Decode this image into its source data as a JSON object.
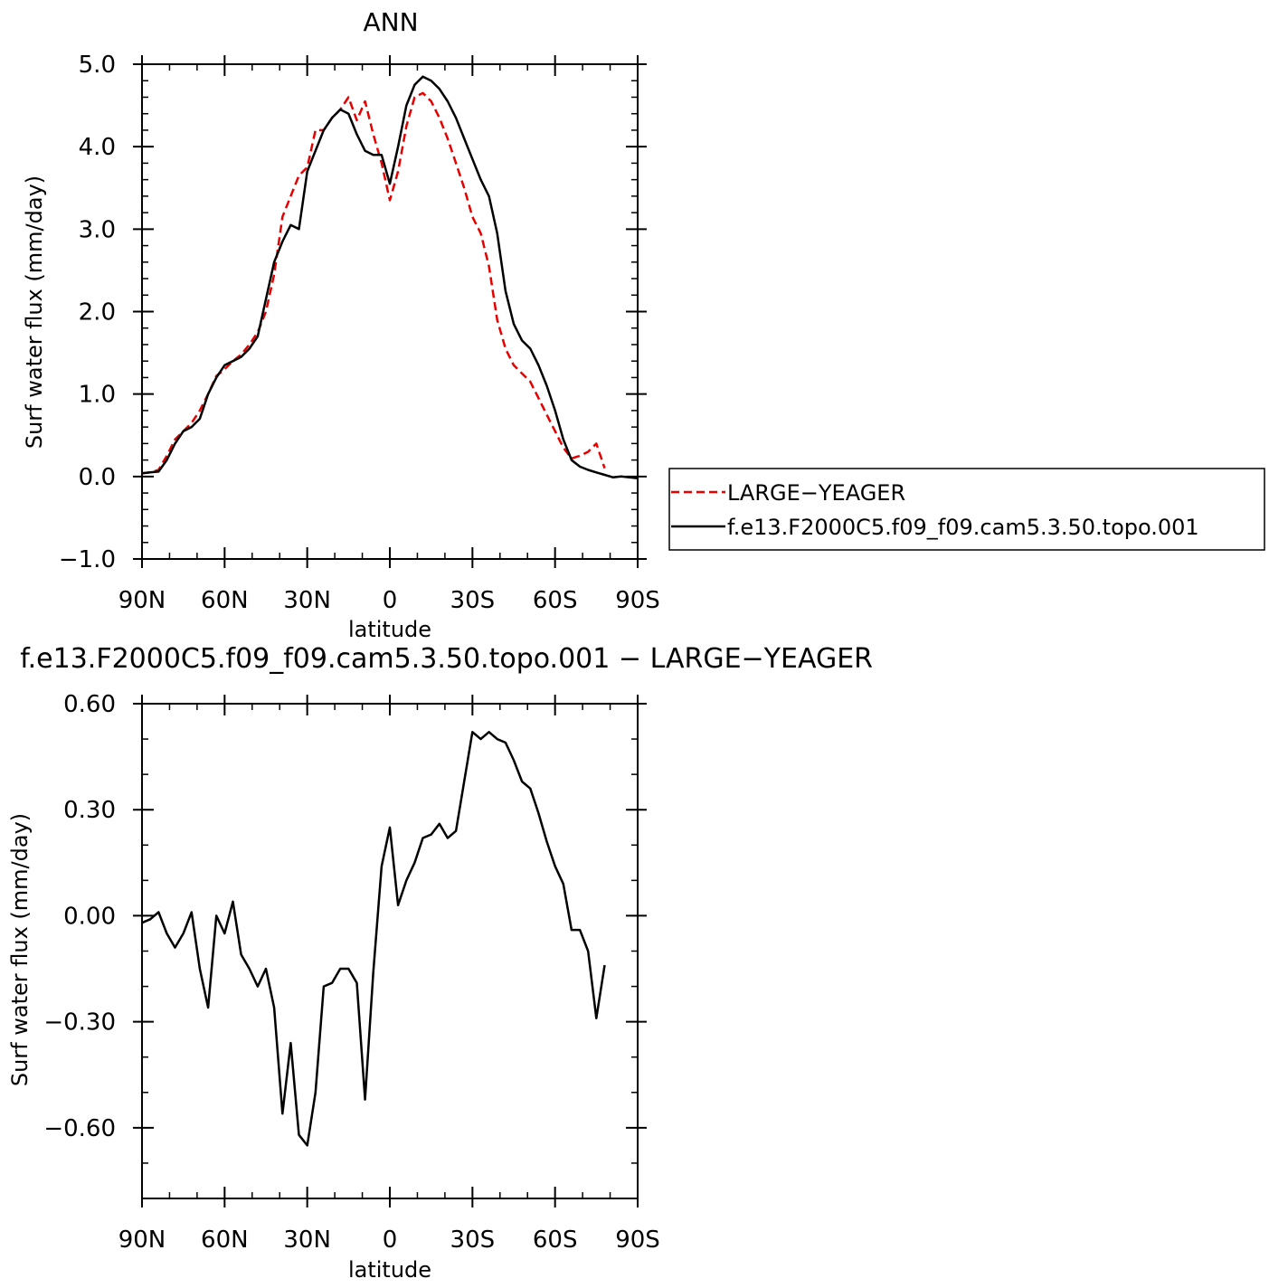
{
  "chart_data": [
    {
      "type": "line",
      "title": "ANN",
      "xlabel": "latitude",
      "ylabel": "Surf water flux (mm/day)",
      "ylim": [
        -1.0,
        5.0
      ],
      "xlim": [
        90,
        -90
      ],
      "y_tick_labels": [
        "5.0",
        "4.0",
        "3.0",
        "2.0",
        "1.0",
        "0.0",
        "−1.0"
      ],
      "x_tick_labels": [
        "90N",
        "60N",
        "30N",
        "0",
        "30S",
        "60S",
        "90S"
      ],
      "legend": {
        "placement": "right",
        "entries": [
          "LARGE−YEAGER",
          "f.e13.F2000C5.f09_f09.cam5.3.50.topo.001"
        ]
      },
      "series": [
        {
          "name": "LARGE−YEAGER",
          "color": "#e60000",
          "dashed": true,
          "x": [
            90,
            87,
            84,
            81,
            78,
            75,
            72,
            69,
            66,
            63,
            60,
            57,
            54,
            51,
            48,
            45,
            42,
            39,
            36,
            33,
            30,
            27,
            24,
            21,
            18,
            15,
            12,
            9,
            6,
            3,
            0,
            -3,
            -6,
            -9,
            -12,
            -15,
            -18,
            -21,
            -24,
            -27,
            -30,
            -33,
            -36,
            -39,
            -42,
            -45,
            -48,
            -51,
            -54,
            -57,
            -60,
            -63,
            -66,
            -69,
            -72,
            -75,
            -78
          ],
          "y": [
            0.04,
            0.05,
            0.08,
            0.25,
            0.45,
            0.55,
            0.65,
            0.8,
            1.0,
            1.22,
            1.3,
            1.4,
            1.48,
            1.6,
            1.75,
            2.0,
            2.45,
            3.15,
            3.4,
            3.65,
            3.75,
            4.2,
            4.2,
            4.35,
            4.45,
            4.6,
            4.32,
            4.55,
            4.15,
            3.8,
            3.35,
            3.7,
            4.25,
            4.6,
            4.65,
            4.55,
            4.35,
            4.1,
            3.8,
            3.5,
            3.15,
            2.95,
            2.55,
            1.9,
            1.55,
            1.35,
            1.25,
            1.15,
            0.95,
            0.75,
            0.55,
            0.35,
            0.22,
            0.25,
            0.3,
            0.4,
            0.1
          ]
        },
        {
          "name": "f.e13.F2000C5.f09_f09.cam5.3.50.topo.001",
          "color": "#000000",
          "dashed": false,
          "x": [
            90,
            87,
            84,
            81,
            78,
            75,
            72,
            69,
            66,
            63,
            60,
            57,
            54,
            51,
            48,
            45,
            42,
            39,
            36,
            33,
            30,
            27,
            24,
            21,
            18,
            15,
            12,
            9,
            6,
            3,
            0,
            -3,
            -6,
            -9,
            -12,
            -15,
            -18,
            -21,
            -24,
            -27,
            -30,
            -33,
            -36,
            -39,
            -42,
            -45,
            -48,
            -51,
            -54,
            -57,
            -60,
            -63,
            -66,
            -69,
            -72,
            -75,
            -78,
            -81,
            -84,
            -87,
            -90
          ],
          "y": [
            0.04,
            0.05,
            0.06,
            0.2,
            0.4,
            0.55,
            0.6,
            0.7,
            1.0,
            1.2,
            1.35,
            1.4,
            1.45,
            1.55,
            1.7,
            2.15,
            2.6,
            2.85,
            3.05,
            3.0,
            3.7,
            3.95,
            4.2,
            4.35,
            4.45,
            4.4,
            4.15,
            3.95,
            3.9,
            3.9,
            3.55,
            4.0,
            4.5,
            4.75,
            4.85,
            4.8,
            4.7,
            4.55,
            4.35,
            4.1,
            3.85,
            3.6,
            3.4,
            2.95,
            2.25,
            1.85,
            1.65,
            1.55,
            1.35,
            1.1,
            0.8,
            0.45,
            0.2,
            0.12,
            0.08,
            0.05,
            0.02,
            -0.01,
            0.0,
            -0.01,
            -0.02
          ]
        }
      ]
    },
    {
      "type": "line",
      "title": "f.e13.F2000C5.f09_f09.cam5.3.50.topo.001 − LARGE−YEAGER",
      "xlabel": "latitude",
      "ylabel": "Surf water flux (mm/day)",
      "ylim": [
        -0.8,
        0.6
      ],
      "xlim": [
        90,
        -90
      ],
      "y_tick_labels": [
        "0.60",
        "0.30",
        "0.00",
        "−0.30",
        "−0.60"
      ],
      "x_tick_labels": [
        "90N",
        "60N",
        "30N",
        "0",
        "30S",
        "60S",
        "90S"
      ],
      "series": [
        {
          "color": "#000000",
          "dashed": false,
          "x": [
            90,
            87,
            84,
            81,
            78,
            75,
            72,
            69,
            66,
            63,
            60,
            57,
            54,
            51,
            48,
            45,
            42,
            39,
            36,
            33,
            30,
            27,
            24,
            21,
            18,
            15,
            12,
            9,
            6,
            3,
            0,
            -3,
            -6,
            -9,
            -12,
            -15,
            -18,
            -21,
            -24,
            -27,
            -30,
            -33,
            -36,
            -39,
            -42,
            -45,
            -48,
            -51,
            -54,
            -57,
            -60,
            -63,
            -66,
            -69,
            -72,
            -75,
            -78
          ],
          "y": [
            -0.02,
            -0.01,
            0.01,
            -0.05,
            -0.09,
            -0.05,
            0.01,
            -0.15,
            -0.26,
            0.0,
            -0.05,
            0.04,
            -0.11,
            -0.15,
            -0.2,
            -0.15,
            -0.26,
            -0.56,
            -0.36,
            -0.62,
            -0.65,
            -0.5,
            -0.2,
            -0.19,
            -0.15,
            -0.15,
            -0.19,
            -0.52,
            -0.16,
            0.14,
            0.25,
            0.03,
            0.1,
            0.15,
            0.22,
            0.23,
            0.26,
            0.22,
            0.24,
            0.38,
            0.52,
            0.5,
            0.52,
            0.5,
            0.49,
            0.44,
            0.38,
            0.36,
            0.29,
            0.21,
            0.14,
            0.09,
            -0.04,
            -0.04,
            -0.1,
            -0.29,
            -0.14
          ]
        }
      ]
    }
  ]
}
